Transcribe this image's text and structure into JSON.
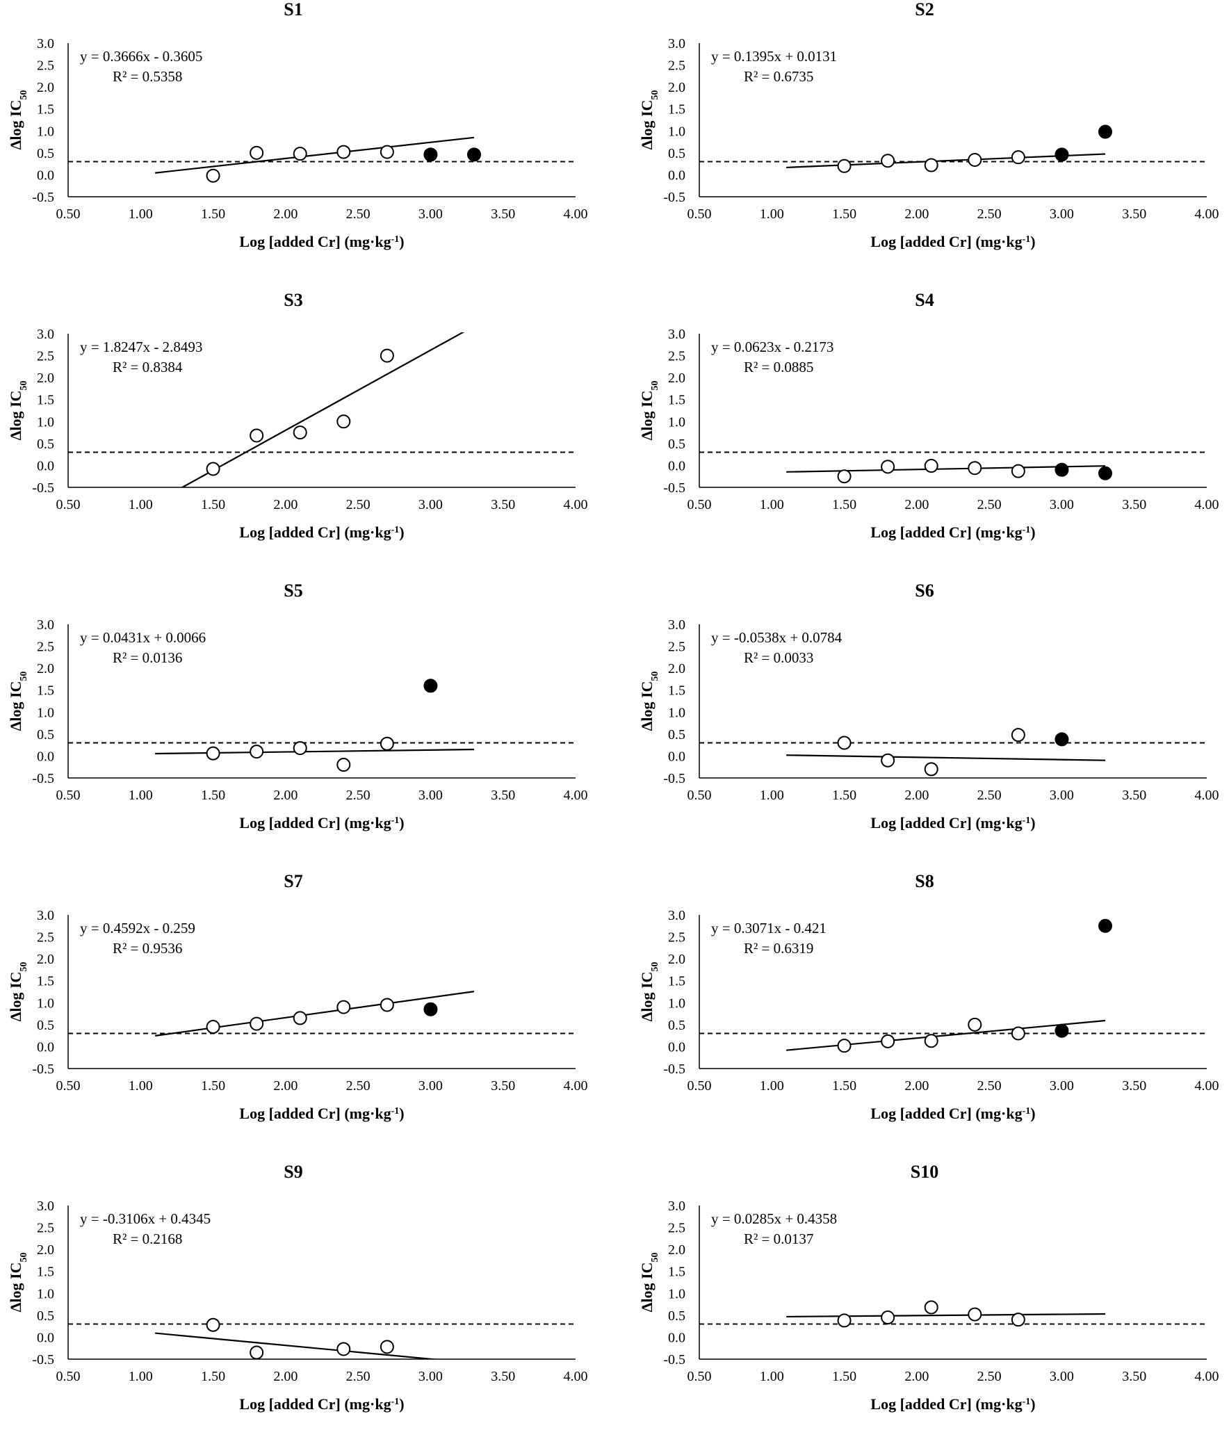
{
  "figure": {
    "x_axis_title": "Log [added Cr] (mg·kg",
    "x_axis_title_sup": "-1",
    "x_axis_title_close": ")",
    "y_axis_title": "Δlog IC",
    "y_axis_title_sub": "50"
  },
  "chart_data": [
    {
      "type": "scatter",
      "title": "S1",
      "xlim": [
        0.5,
        4.0
      ],
      "ylim": [
        -0.5,
        3.0
      ],
      "x_ticks": [
        "0.50",
        "1.00",
        "1.50",
        "2.00",
        "2.50",
        "3.00",
        "3.50",
        "4.00"
      ],
      "y_ticks": [
        "3.0",
        "2.5",
        "2.0",
        "1.5",
        "1.0",
        "0.5",
        "0.0",
        "-0.5"
      ],
      "threshold": 0.3,
      "equation": "y = 0.3666x - 0.3605",
      "r2": "R² = 0.5358",
      "trend": {
        "slope": 0.3666,
        "intercept": -0.3605,
        "x_range": [
          1.1,
          3.3
        ]
      },
      "series": [
        {
          "name": "open",
          "points": [
            [
              1.5,
              -0.02
            ],
            [
              1.8,
              0.5
            ],
            [
              2.1,
              0.48
            ],
            [
              2.4,
              0.52
            ],
            [
              2.7,
              0.52
            ]
          ]
        },
        {
          "name": "filled",
          "points": [
            [
              3.0,
              0.46
            ],
            [
              3.3,
              0.46
            ]
          ]
        }
      ]
    },
    {
      "type": "scatter",
      "title": "S2",
      "xlim": [
        0.5,
        4.0
      ],
      "ylim": [
        -0.5,
        3.0
      ],
      "x_ticks": [
        "0.50",
        "1.00",
        "1.50",
        "2.00",
        "2.50",
        "3.00",
        "3.50",
        "4.00"
      ],
      "y_ticks": [
        "3.0",
        "2.5",
        "2.0",
        "1.5",
        "1.0",
        "0.5",
        "0.0",
        "-0.5"
      ],
      "threshold": 0.3,
      "equation": "y = 0.1395x + 0.0131",
      "r2": "R² = 0.6735",
      "trend": {
        "slope": 0.1395,
        "intercept": 0.0131,
        "x_range": [
          1.1,
          3.3
        ]
      },
      "series": [
        {
          "name": "open",
          "points": [
            [
              1.5,
              0.2
            ],
            [
              1.8,
              0.32
            ],
            [
              2.1,
              0.22
            ],
            [
              2.4,
              0.34
            ],
            [
              2.7,
              0.4
            ]
          ]
        },
        {
          "name": "filled",
          "points": [
            [
              3.0,
              0.46
            ],
            [
              3.3,
              0.98
            ]
          ]
        }
      ]
    },
    {
      "type": "scatter",
      "title": "S3",
      "xlim": [
        0.5,
        4.0
      ],
      "ylim": [
        -0.5,
        3.0
      ],
      "x_ticks": [
        "0.50",
        "1.00",
        "1.50",
        "2.00",
        "2.50",
        "3.00",
        "3.50",
        "4.00"
      ],
      "y_ticks": [
        "3.0",
        "2.5",
        "2.0",
        "1.5",
        "1.0",
        "0.5",
        "0.0",
        "-0.5"
      ],
      "threshold": 0.3,
      "equation": "y = 1.8247x - 2.8493",
      "r2": "R² = 0.8384",
      "trend": {
        "slope": 1.8247,
        "intercept": -2.8493,
        "x_range": [
          1.1,
          3.3
        ]
      },
      "series": [
        {
          "name": "open",
          "points": [
            [
              1.5,
              -0.08
            ],
            [
              1.8,
              0.68
            ],
            [
              2.1,
              0.75
            ],
            [
              2.4,
              1.0
            ],
            [
              2.7,
              2.5
            ]
          ]
        },
        {
          "name": "filled",
          "points": []
        }
      ]
    },
    {
      "type": "scatter",
      "title": "S4",
      "xlim": [
        0.5,
        4.0
      ],
      "ylim": [
        -0.5,
        3.0
      ],
      "x_ticks": [
        "0.50",
        "1.00",
        "1.50",
        "2.00",
        "2.50",
        "3.00",
        "3.50",
        "4.00"
      ],
      "y_ticks": [
        "3.0",
        "2.5",
        "2.0",
        "1.5",
        "1.0",
        "0.5",
        "0.0",
        "-0.5"
      ],
      "threshold": 0.3,
      "equation": "y = 0.0623x - 0.2173",
      "r2": "R² = 0.0885",
      "trend": {
        "slope": 0.0623,
        "intercept": -0.2173,
        "x_range": [
          1.1,
          3.3
        ]
      },
      "series": [
        {
          "name": "open",
          "points": [
            [
              1.5,
              -0.25
            ],
            [
              1.8,
              -0.03
            ],
            [
              2.1,
              -0.01
            ],
            [
              2.4,
              -0.06
            ],
            [
              2.7,
              -0.13
            ]
          ]
        },
        {
          "name": "filled",
          "points": [
            [
              3.0,
              -0.1
            ],
            [
              3.3,
              -0.18
            ]
          ]
        }
      ]
    },
    {
      "type": "scatter",
      "title": "S5",
      "xlim": [
        0.5,
        4.0
      ],
      "ylim": [
        -0.5,
        3.0
      ],
      "x_ticks": [
        "0.50",
        "1.00",
        "1.50",
        "2.00",
        "2.50",
        "3.00",
        "3.50",
        "4.00"
      ],
      "y_ticks": [
        "3.0",
        "2.5",
        "2.0",
        "1.5",
        "1.0",
        "0.5",
        "0.0",
        "-0.5"
      ],
      "threshold": 0.3,
      "equation": "y = 0.0431x + 0.0066",
      "r2": "R² = 0.0136",
      "trend": {
        "slope": 0.0431,
        "intercept": 0.0066,
        "x_range": [
          1.1,
          3.3
        ]
      },
      "series": [
        {
          "name": "open",
          "points": [
            [
              1.5,
              0.06
            ],
            [
              1.8,
              0.1
            ],
            [
              2.1,
              0.18
            ],
            [
              2.4,
              -0.2
            ],
            [
              2.7,
              0.28
            ]
          ]
        },
        {
          "name": "filled",
          "points": [
            [
              3.0,
              1.6
            ]
          ]
        }
      ]
    },
    {
      "type": "scatter",
      "title": "S6",
      "xlim": [
        0.5,
        4.0
      ],
      "ylim": [
        -0.5,
        3.0
      ],
      "x_ticks": [
        "0.50",
        "1.00",
        "1.50",
        "2.00",
        "2.50",
        "3.00",
        "3.50",
        "4.00"
      ],
      "y_ticks": [
        "3.0",
        "2.5",
        "2.0",
        "1.5",
        "1.0",
        "0.5",
        "0.0",
        "-0.5"
      ],
      "threshold": 0.3,
      "equation": "y = -0.0538x + 0.0784",
      "r2": "R² = 0.0033",
      "trend": {
        "slope": -0.0538,
        "intercept": 0.0784,
        "x_range": [
          1.1,
          3.3
        ]
      },
      "series": [
        {
          "name": "open",
          "points": [
            [
              1.5,
              0.3
            ],
            [
              1.8,
              -0.1
            ],
            [
              2.1,
              -0.3
            ],
            [
              2.7,
              0.48
            ]
          ]
        },
        {
          "name": "filled",
          "points": [
            [
              3.0,
              0.38
            ]
          ]
        }
      ]
    },
    {
      "type": "scatter",
      "title": "S7",
      "xlim": [
        0.5,
        4.0
      ],
      "ylim": [
        -0.5,
        3.0
      ],
      "x_ticks": [
        "0.50",
        "1.00",
        "1.50",
        "2.00",
        "2.50",
        "3.00",
        "3.50",
        "4.00"
      ],
      "y_ticks": [
        "3.0",
        "2.5",
        "2.0",
        "1.5",
        "1.0",
        "0.5",
        "0.0",
        "-0.5"
      ],
      "threshold": 0.3,
      "equation": "y = 0.4592x - 0.259",
      "r2": "R² = 0.9536",
      "trend": {
        "slope": 0.4592,
        "intercept": -0.259,
        "x_range": [
          1.1,
          3.3
        ]
      },
      "series": [
        {
          "name": "open",
          "points": [
            [
              1.5,
              0.45
            ],
            [
              1.8,
              0.52
            ],
            [
              2.1,
              0.65
            ],
            [
              2.4,
              0.9
            ],
            [
              2.7,
              0.95
            ]
          ]
        },
        {
          "name": "filled",
          "points": [
            [
              3.0,
              0.85
            ]
          ]
        }
      ]
    },
    {
      "type": "scatter",
      "title": "S8",
      "xlim": [
        0.5,
        4.0
      ],
      "ylim": [
        -0.5,
        3.0
      ],
      "x_ticks": [
        "0.50",
        "1.00",
        "1.50",
        "2.00",
        "2.50",
        "3.00",
        "3.50",
        "4.00"
      ],
      "y_ticks": [
        "3.0",
        "2.5",
        "2.0",
        "1.5",
        "1.0",
        "0.5",
        "0.0",
        "-0.5"
      ],
      "threshold": 0.3,
      "equation": "y = 0.3071x - 0.421",
      "r2": "R² = 0.6319",
      "trend": {
        "slope": 0.3071,
        "intercept": -0.421,
        "x_range": [
          1.1,
          3.3
        ]
      },
      "series": [
        {
          "name": "open",
          "points": [
            [
              1.5,
              0.02
            ],
            [
              1.8,
              0.12
            ],
            [
              2.1,
              0.13
            ],
            [
              2.4,
              0.5
            ],
            [
              2.7,
              0.3
            ]
          ]
        },
        {
          "name": "filled",
          "points": [
            [
              3.0,
              0.36
            ],
            [
              3.3,
              2.75
            ]
          ]
        }
      ]
    },
    {
      "type": "scatter",
      "title": "S9",
      "xlim": [
        0.5,
        4.0
      ],
      "ylim": [
        -0.5,
        3.0
      ],
      "x_ticks": [
        "0.50",
        "1.00",
        "1.50",
        "2.00",
        "2.50",
        "3.00",
        "3.50",
        "4.00"
      ],
      "y_ticks": [
        "3.0",
        "2.5",
        "2.0",
        "1.5",
        "1.0",
        "0.5",
        "0.0",
        "-0.5"
      ],
      "threshold": 0.3,
      "equation": "y = -0.3106x + 0.4345",
      "r2": "R² = 0.2168",
      "trend": {
        "slope": -0.3106,
        "intercept": 0.4345,
        "x_range": [
          1.1,
          3.3
        ]
      },
      "series": [
        {
          "name": "open",
          "points": [
            [
              1.5,
              0.28
            ],
            [
              1.8,
              -0.35
            ],
            [
              2.4,
              -0.27
            ],
            [
              2.7,
              -0.22
            ]
          ]
        },
        {
          "name": "filled",
          "points": []
        }
      ]
    },
    {
      "type": "scatter",
      "title": "S10",
      "xlim": [
        0.5,
        4.0
      ],
      "ylim": [
        -0.5,
        3.0
      ],
      "x_ticks": [
        "0.50",
        "1.00",
        "1.50",
        "2.00",
        "2.50",
        "3.00",
        "3.50",
        "4.00"
      ],
      "y_ticks": [
        "3.0",
        "2.5",
        "2.0",
        "1.5",
        "1.0",
        "0.5",
        "0.0",
        "-0.5"
      ],
      "threshold": 0.3,
      "equation": "y = 0.0285x + 0.4358",
      "r2": "R² = 0.0137",
      "trend": {
        "slope": 0.0285,
        "intercept": 0.4358,
        "x_range": [
          1.1,
          3.3
        ]
      },
      "series": [
        {
          "name": "open",
          "points": [
            [
              1.5,
              0.38
            ],
            [
              1.8,
              0.45
            ],
            [
              2.1,
              0.68
            ],
            [
              2.4,
              0.52
            ],
            [
              2.7,
              0.4
            ]
          ]
        },
        {
          "name": "filled",
          "points": []
        }
      ]
    }
  ]
}
